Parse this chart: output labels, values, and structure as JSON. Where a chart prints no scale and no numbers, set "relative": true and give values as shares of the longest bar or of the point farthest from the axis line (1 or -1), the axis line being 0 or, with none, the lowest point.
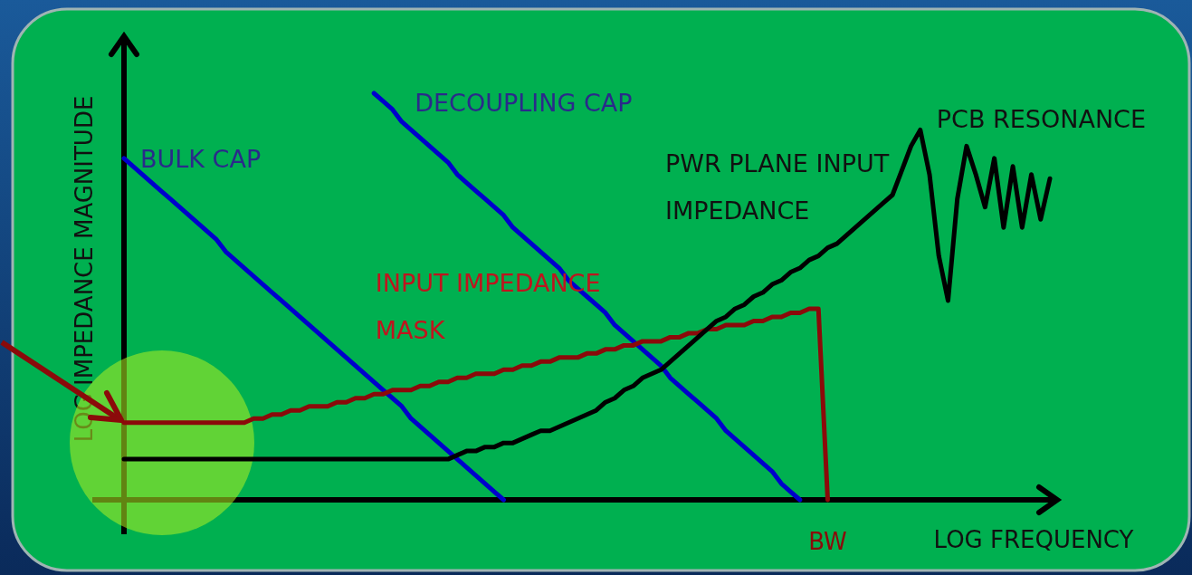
{
  "chart_data": {
    "type": "line",
    "relative": true,
    "xlabel": "LOG FREQUENCY",
    "ylabel": "LOG IMPEDANCE MAGNITUDE",
    "legend": false,
    "marker": "none",
    "line_style": "solid",
    "categories": [
      null,
      null,
      null,
      null,
      null,
      null,
      null,
      null,
      null,
      null,
      null,
      null,
      null,
      null,
      null,
      null,
      null,
      null,
      null,
      null,
      null,
      null,
      null,
      null,
      null,
      null,
      null,
      null,
      null,
      null,
      null,
      null,
      null,
      null,
      null,
      null,
      null,
      null,
      null,
      null,
      null,
      null,
      null,
      null,
      null,
      null,
      null,
      null,
      null,
      null,
      null,
      null,
      null,
      null,
      null,
      null,
      null,
      null,
      null,
      null,
      null,
      null,
      null,
      null,
      null,
      null,
      null,
      null,
      null,
      null,
      null,
      null,
      null,
      null,
      null,
      null,
      null,
      null,
      null,
      null,
      null,
      null,
      null,
      null,
      null,
      null,
      null,
      null,
      null,
      null,
      null,
      null,
      null,
      null,
      null,
      null,
      null,
      null,
      null,
      null,
      null
    ],
    "series": [
      {
        "name": "BULK CAP",
        "color": "#0000cc",
        "values": [
          0.84,
          0.82,
          0.8,
          0.78,
          0.76,
          0.74,
          0.72,
          0.7,
          0.68,
          0.66,
          0.64,
          0.61,
          0.59,
          0.57,
          0.55,
          0.53,
          0.51,
          0.49,
          0.47,
          0.45,
          0.43,
          0.41,
          0.39,
          0.37,
          0.35,
          0.33,
          0.31,
          0.29,
          0.27,
          0.25,
          0.23,
          0.2,
          0.18,
          0.16,
          0.14,
          0.12,
          0.1,
          0.08,
          0.06,
          0.04,
          0.02,
          0,
          null,
          null,
          null,
          null,
          null,
          null,
          null,
          null,
          null,
          null,
          null,
          null,
          null,
          null,
          null,
          null,
          null,
          null,
          null,
          null,
          null,
          null,
          null,
          null,
          null,
          null,
          null,
          null,
          null,
          null,
          null,
          null,
          null,
          null,
          null,
          null,
          null,
          null,
          null,
          null,
          null,
          null,
          null,
          null,
          null,
          null,
          null,
          null,
          null,
          null,
          null,
          null,
          null,
          null,
          null,
          null,
          null,
          null,
          null
        ]
      },
      {
        "name": "DECOUPLING CAP",
        "color": "#0000cc",
        "values": [
          null,
          null,
          null,
          null,
          null,
          null,
          null,
          null,
          null,
          null,
          null,
          null,
          null,
          null,
          null,
          null,
          null,
          null,
          null,
          null,
          null,
          null,
          null,
          null,
          null,
          null,
          null,
          1.0,
          0.98,
          0.96,
          0.93,
          0.91,
          0.89,
          0.87,
          0.85,
          0.83,
          0.8,
          0.78,
          0.76,
          0.74,
          0.72,
          0.7,
          0.67,
          0.65,
          0.63,
          0.61,
          0.59,
          0.57,
          0.54,
          0.52,
          0.5,
          0.48,
          0.46,
          0.43,
          0.41,
          0.39,
          0.37,
          0.35,
          0.33,
          0.3,
          0.28,
          0.26,
          0.24,
          0.22,
          0.2,
          0.17,
          0.15,
          0.13,
          0.11,
          0.09,
          0.07,
          0.04,
          0.02,
          0,
          null,
          null,
          null,
          null,
          null,
          null,
          null,
          null,
          null,
          null,
          null,
          null,
          null,
          null,
          null,
          null,
          null,
          null,
          null,
          null,
          null,
          null,
          null,
          null,
          null,
          null,
          null
        ]
      },
      {
        "name": "INPUT IMPEDANCE MASK",
        "color": "#8b0a0a",
        "values": [
          0.19,
          0.19,
          0.19,
          0.19,
          0.19,
          0.19,
          0.19,
          0.19,
          0.19,
          0.19,
          0.19,
          0.19,
          0.19,
          0.19,
          0.2,
          0.2,
          0.21,
          0.21,
          0.22,
          0.22,
          0.23,
          0.23,
          0.23,
          0.24,
          0.24,
          0.25,
          0.25,
          0.26,
          0.26,
          0.27,
          0.27,
          0.27,
          0.28,
          0.28,
          0.29,
          0.29,
          0.3,
          0.3,
          0.31,
          0.31,
          0.31,
          0.32,
          0.32,
          0.33,
          0.33,
          0.34,
          0.34,
          0.35,
          0.35,
          0.35,
          0.36,
          0.36,
          0.37,
          0.37,
          0.38,
          0.38,
          0.39,
          0.39,
          0.39,
          0.4,
          0.4,
          0.41,
          0.41,
          0.42,
          0.42,
          0.43,
          0.43,
          0.43,
          0.44,
          0.44,
          0.45,
          0.45,
          0.46,
          0.46,
          0.47,
          0.47,
          0,
          null,
          null,
          null,
          null,
          null,
          null,
          null,
          null,
          null,
          null,
          null,
          null,
          null,
          null,
          null,
          null,
          null,
          null,
          null,
          null,
          null,
          null,
          null,
          null
        ]
      },
      {
        "name": "PWR PLANE INPUT IMPEDANCE",
        "color": "#000000",
        "values": [
          0.1,
          0.1,
          0.1,
          0.1,
          0.1,
          0.1,
          0.1,
          0.1,
          0.1,
          0.1,
          0.1,
          0.1,
          0.1,
          0.1,
          0.1,
          0.1,
          0.1,
          0.1,
          0.1,
          0.1,
          0.1,
          0.1,
          0.1,
          0.1,
          0.1,
          0.1,
          0.1,
          0.1,
          0.1,
          0.1,
          0.1,
          0.1,
          0.1,
          0.1,
          0.1,
          0.1,
          0.11,
          0.12,
          0.12,
          0.13,
          0.13,
          0.14,
          0.14,
          0.15,
          0.16,
          0.17,
          0.17,
          0.18,
          0.19,
          0.2,
          0.21,
          0.22,
          0.24,
          0.25,
          0.27,
          0.28,
          0.3,
          0.31,
          0.32,
          0.34,
          0.36,
          0.38,
          0.4,
          0.42,
          0.44,
          0.45,
          0.47,
          0.48,
          0.5,
          0.51,
          0.53,
          0.54,
          0.56,
          0.57,
          0.59,
          0.6,
          0.62,
          0.63,
          0.65,
          0.67,
          0.69,
          0.71,
          0.73,
          0.75,
          0.81,
          0.87,
          0.91,
          0.8,
          0.6,
          0.49,
          0.74,
          0.87,
          0.8,
          0.72,
          0.84,
          0.67,
          0.82,
          0.67,
          0.8,
          0.69,
          0.79
        ]
      }
    ],
    "annotations": [
      "PCB RESONANCE",
      "BW"
    ]
  }
}
